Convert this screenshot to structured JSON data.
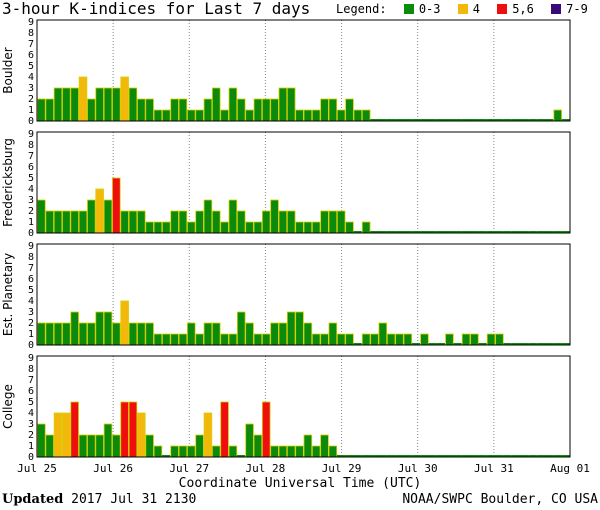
{
  "title": "3-hour K-indices for Last 7 days",
  "legend": {
    "label": "Legend:",
    "items": [
      {
        "label": "0-3",
        "color": "#0b8a0b"
      },
      {
        "label": "4",
        "color": "#f2b90c"
      },
      {
        "label": "5,6",
        "color": "#ee0e0e"
      },
      {
        "label": "7-9",
        "color": "#3a0a7a"
      }
    ]
  },
  "footer": {
    "updated_prefix": "Updated",
    "updated_text": "2017 Jul 31 2130",
    "credit": "NOAA/SWPC Boulder, CO USA"
  },
  "chart_data": {
    "type": "bar",
    "xlabel": "Coordinate Universal Time (UTC)",
    "x_ticks": [
      "Jul 25",
      "Jul 26",
      "Jul 27",
      "Jul 28",
      "Jul 29",
      "Jul 30",
      "Jul 31",
      "Aug 01"
    ],
    "y_ticks": [
      "0",
      "1",
      "2",
      "3",
      "4",
      "5",
      "6",
      "7",
      "8",
      "9"
    ],
    "ylim": [
      0,
      9
    ],
    "bins_per_day": 8,
    "color_scale": [
      {
        "range": [
          0,
          3
        ],
        "color": "#0b8a0b"
      },
      {
        "range": [
          4,
          4
        ],
        "color": "#f2b90c"
      },
      {
        "range": [
          5,
          6
        ],
        "color": "#ee0e0e"
      },
      {
        "range": [
          7,
          9
        ],
        "color": "#3a0a7a"
      }
    ],
    "panels": [
      {
        "name": "Boulder",
        "values": [
          2,
          2,
          3,
          3,
          3,
          4,
          2,
          3,
          3,
          3,
          4,
          3,
          2,
          2,
          1,
          1,
          2,
          2,
          1,
          1,
          2,
          3,
          1,
          3,
          2,
          1,
          2,
          2,
          2,
          3,
          3,
          1,
          1,
          1,
          2,
          2,
          1,
          2,
          1,
          1,
          0,
          0,
          0,
          0,
          0,
          0,
          0,
          0,
          0,
          0,
          0,
          0,
          0,
          0,
          0,
          0,
          0,
          0,
          0,
          0,
          0,
          0,
          1,
          0
        ]
      },
      {
        "name": "Fredericksburg",
        "values": [
          3,
          2,
          2,
          2,
          2,
          2,
          3,
          4,
          3,
          5,
          2,
          2,
          2,
          1,
          1,
          1,
          2,
          2,
          1,
          2,
          3,
          2,
          1,
          3,
          2,
          1,
          1,
          2,
          3,
          2,
          2,
          1,
          1,
          1,
          2,
          2,
          2,
          1,
          0,
          1,
          0,
          0,
          0,
          0,
          0,
          0,
          0,
          0,
          0,
          0,
          0,
          0,
          0,
          0,
          0,
          0,
          0,
          0,
          0,
          0,
          0,
          0,
          0,
          0
        ]
      },
      {
        "name": "Est. Planetary",
        "values": [
          2,
          2,
          2,
          2,
          3,
          2,
          2,
          3,
          3,
          2,
          4,
          2,
          2,
          2,
          1,
          1,
          1,
          1,
          2,
          1,
          2,
          2,
          1,
          1,
          3,
          2,
          1,
          1,
          2,
          2,
          3,
          3,
          2,
          1,
          1,
          2,
          1,
          1,
          0,
          1,
          1,
          2,
          1,
          1,
          1,
          0,
          1,
          0,
          0,
          1,
          0,
          1,
          1,
          0,
          1,
          1,
          0,
          0,
          0,
          0,
          0,
          0,
          0,
          0
        ]
      },
      {
        "name": "College",
        "values": [
          3,
          2,
          4,
          4,
          5,
          2,
          2,
          2,
          3,
          2,
          5,
          5,
          4,
          2,
          1,
          0,
          1,
          1,
          1,
          2,
          4,
          1,
          5,
          1,
          0,
          3,
          2,
          5,
          1,
          1,
          1,
          1,
          2,
          1,
          2,
          1,
          0,
          0,
          0,
          0,
          0,
          0,
          0,
          0,
          0,
          0,
          0,
          0,
          0,
          0,
          0,
          0,
          0,
          0,
          0,
          0,
          0,
          0,
          0,
          0,
          0,
          0,
          0,
          0
        ]
      }
    ]
  }
}
